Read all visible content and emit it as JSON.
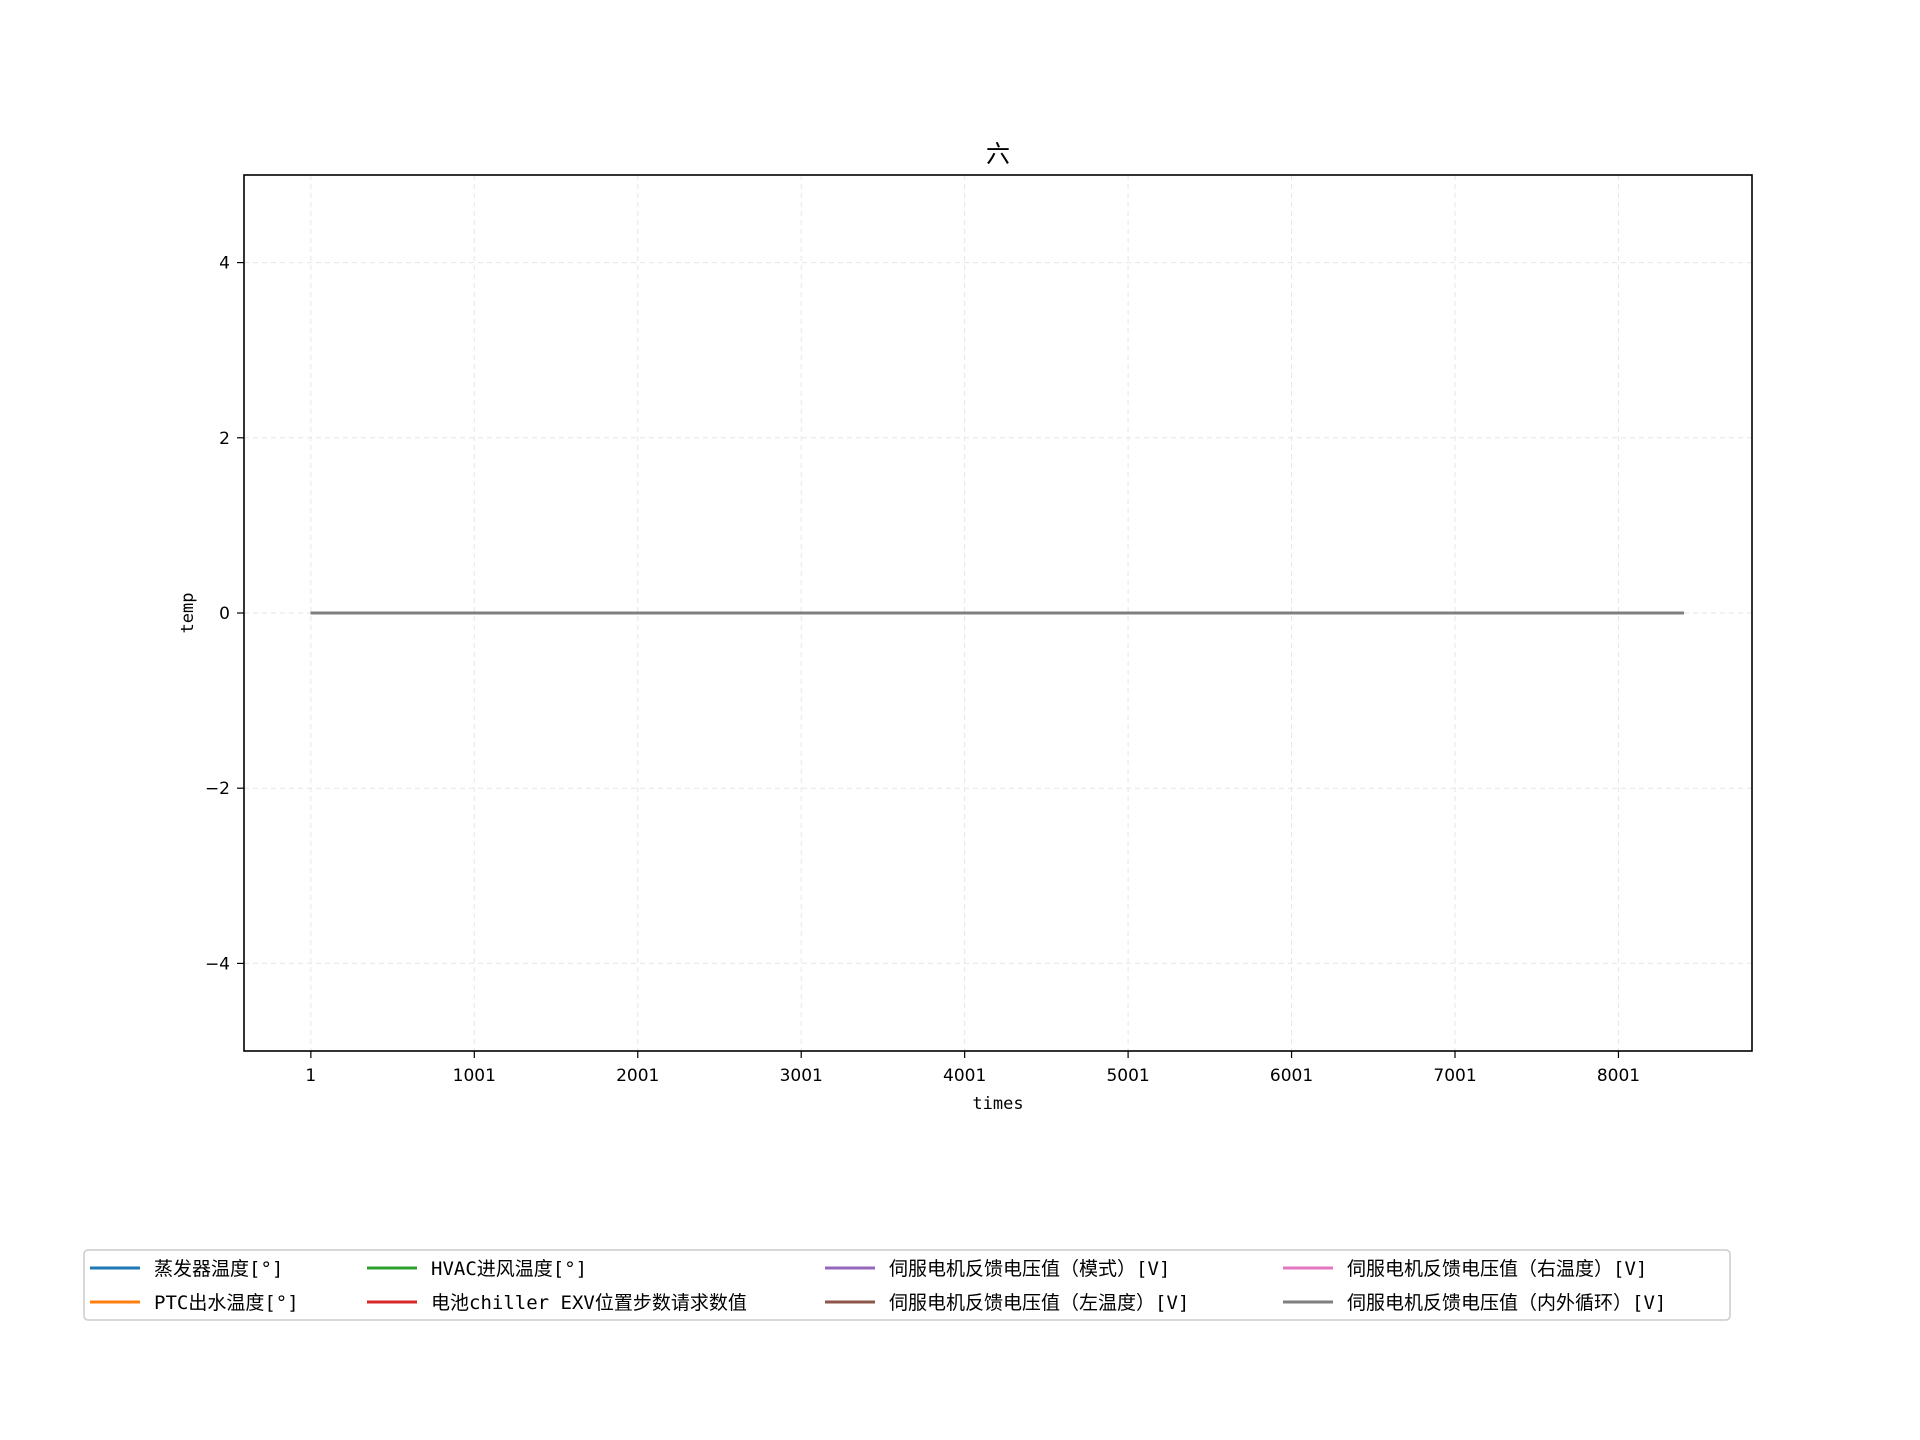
{
  "chart_data": {
    "type": "line",
    "title": "六",
    "xlabel": "times",
    "ylabel": "temp",
    "xlim": [
      -408,
      8818
    ],
    "ylim": [
      -5,
      5
    ],
    "x_ticks": [
      1,
      1001,
      2001,
      3001,
      4001,
      5001,
      6001,
      7001,
      8001
    ],
    "x_tick_labels": [
      "1",
      "1001",
      "2001",
      "3001",
      "4001",
      "5001",
      "6001",
      "7001",
      "8001"
    ],
    "y_ticks": [
      -4,
      -2,
      0,
      2,
      4
    ],
    "y_tick_labels": [
      "−4",
      "−2",
      "0",
      "2",
      "4"
    ],
    "grid": true,
    "legend_position": "bottom, below plot",
    "x_range": [
      1,
      8400
    ],
    "series": [
      {
        "name": "蒸发器温度[°]",
        "color": "#1f77b4",
        "x": [
          1,
          8400
        ],
        "values": [
          0,
          0
        ]
      },
      {
        "name": "PTC出水温度[°]",
        "color": "#ff7f0e",
        "x": [
          1,
          8400
        ],
        "values": [
          0,
          0
        ]
      },
      {
        "name": "HVAC进风温度[°]",
        "color": "#2ca02c",
        "x": [
          1,
          8400
        ],
        "values": [
          0,
          0
        ]
      },
      {
        "name": "电池chiller EXV位置步数请求数值",
        "color": "#d62728",
        "x": [
          1,
          8400
        ],
        "values": [
          0,
          0
        ]
      },
      {
        "name": "伺服电机反馈电压值（模式）[V]",
        "color": "#9467bd",
        "x": [
          1,
          8400
        ],
        "values": [
          0,
          0
        ]
      },
      {
        "name": "伺服电机反馈电压值（左温度）[V]",
        "color": "#8c564b",
        "x": [
          1,
          8400
        ],
        "values": [
          0,
          0
        ]
      },
      {
        "name": "伺服电机反馈电压值（右温度）[V]",
        "color": "#e377c2",
        "x": [
          1,
          8400
        ],
        "values": [
          0,
          0
        ]
      },
      {
        "name": "伺服电机反馈电压值（内外循环）[V]",
        "color": "#7f7f7f",
        "x": [
          1,
          8400
        ],
        "values": [
          0,
          0
        ]
      }
    ]
  }
}
